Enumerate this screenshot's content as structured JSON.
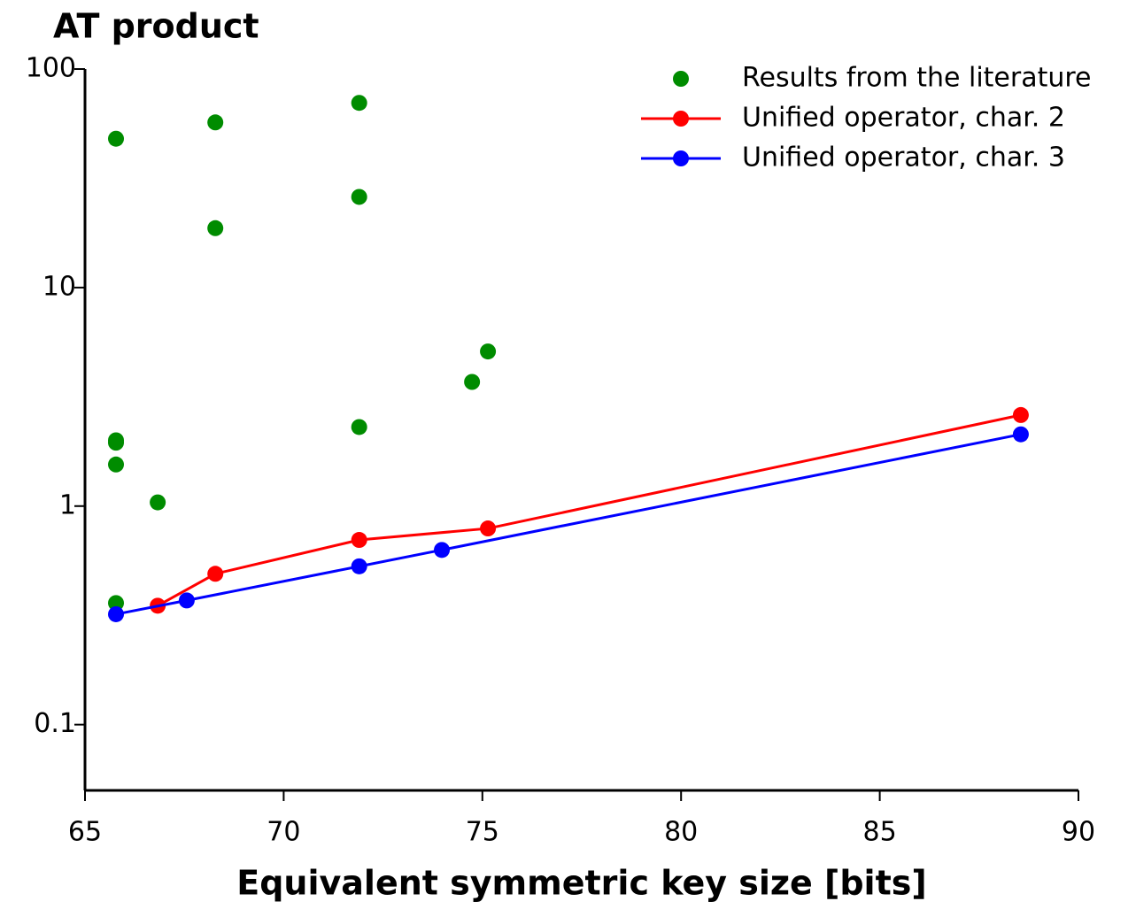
{
  "chart_data": {
    "type": "scatter",
    "title": "AT product",
    "xlabel": "Equivalent symmetric key size [bits]",
    "xlim": [
      65,
      90
    ],
    "xticks": [
      65,
      70,
      75,
      80,
      85,
      90
    ],
    "ylim": [
      0.05,
      100
    ],
    "yticks": [
      0.1,
      1,
      10,
      100
    ],
    "ylog": true,
    "legend": "upper right",
    "series": [
      {
        "name": "Results from the literature",
        "color": "#008c00",
        "line": false,
        "x": [
          65.78,
          65.78,
          65.78,
          65.78,
          65.78,
          66.83,
          68.28,
          68.28,
          71.9,
          71.9,
          71.9,
          74.74,
          75.14
        ],
        "values": [
          48,
          2.0,
          1.95,
          1.55,
          0.36,
          1.04,
          57,
          18.7,
          70,
          26,
          2.3,
          3.7,
          5.1
        ]
      },
      {
        "name": "Unified operator, char. 2",
        "color": "#ff0000",
        "line": true,
        "x": [
          66.83,
          68.28,
          71.9,
          75.14,
          88.55
        ],
        "values": [
          0.35,
          0.49,
          0.7,
          0.79,
          2.61
        ]
      },
      {
        "name": "Unified operator, char. 3",
        "color": "#0000ff",
        "line": true,
        "x": [
          65.78,
          67.56,
          71.9,
          73.98,
          88.55
        ],
        "values": [
          0.32,
          0.37,
          0.53,
          0.63,
          2.13
        ]
      }
    ]
  }
}
